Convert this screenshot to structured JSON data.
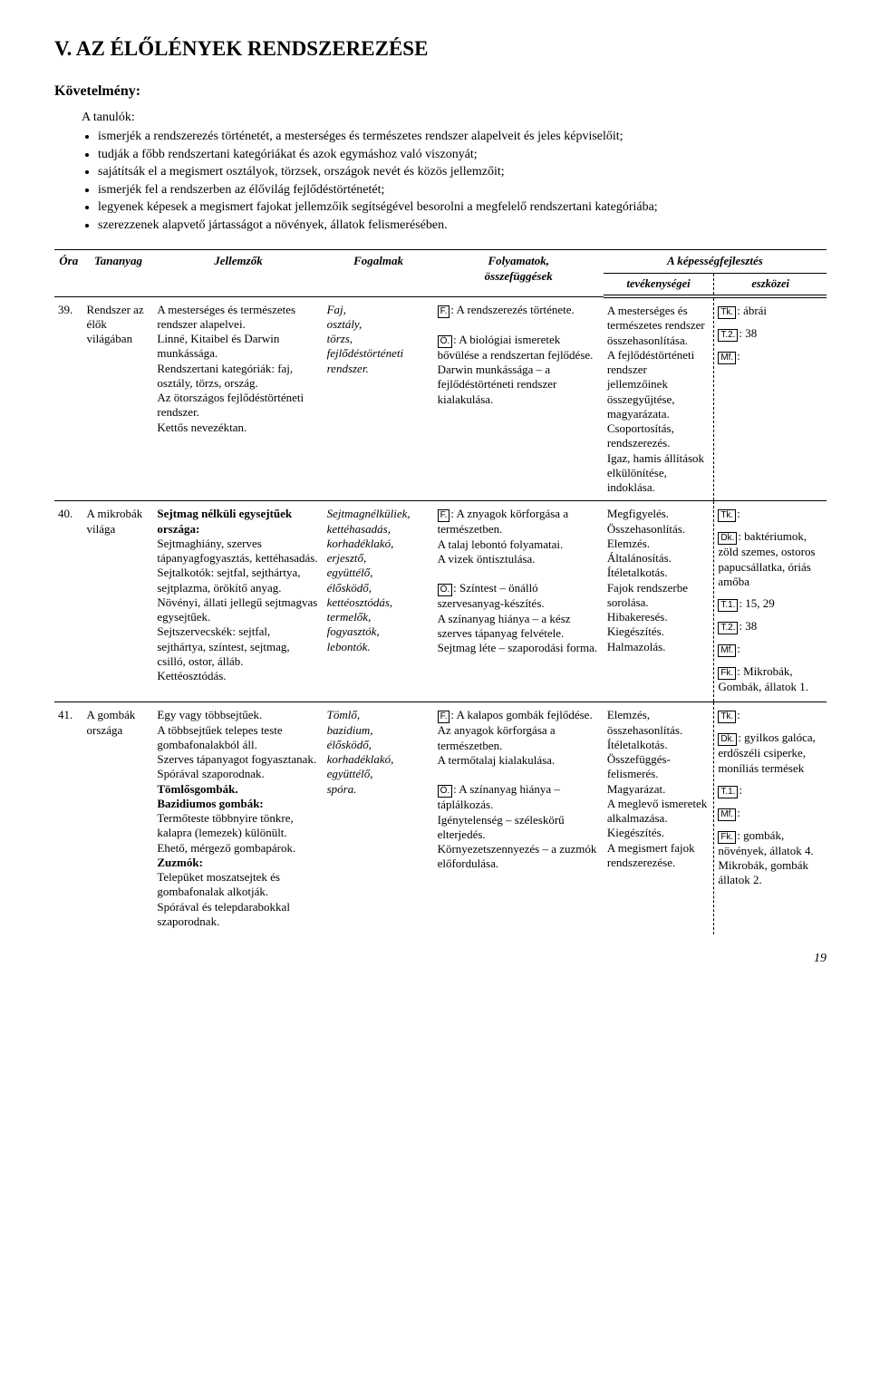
{
  "title": "V. AZ ÉLŐLÉNYEK RENDSZEREZÉSE",
  "reqHeading": "Követelmény:",
  "introLead": "A tanulók:",
  "introItems": [
    "ismerjék a rendszerezés történetét, a mesterséges és természetes rendszer alapelveit és jeles képviselőit;",
    "tudják a főbb rendszertani kategóriákat és azok egymáshoz való viszonyát;",
    "sajátítsák el a megismert osztályok, törzsek, országok nevét és közös jellemzőit;",
    "ismerjék fel a rendszerben az élővilág fejlődéstörténetét;",
    "legyenek képesek a megismert fajokat jellemzőik segítségével besorolni a megfelelő rendszertani kategóriába;",
    "szerezzenek alapvető jártasságot a növények, állatok felismerésében."
  ],
  "head": {
    "ora": "Óra",
    "tananyag": "Tananyag",
    "jellemzok": "Jellemzők",
    "fogalmak": "Fogalmak",
    "folyamatok": "Folyamatok,\nösszefüggések",
    "kepesseg": "A képességfejlesztés",
    "tev": "tevékenységei",
    "esz": "eszközei"
  },
  "tags": {
    "F": "F.",
    "O": "Ö.",
    "Tk": "Tk.",
    "T1": "T.1.",
    "T2": "T.2.",
    "Mf": "Mf.",
    "Dk": "Dk.",
    "Fk": "Fk."
  },
  "rows": [
    {
      "ora": "39.",
      "tan": "Rendszer az élők világában",
      "jel": "A mesterséges és természetes rendszer alapelvei.\nLinné, Kitaibel és Darwin munkássága.\nRendszertani kategóriák: faj, osztály, törzs, ország.\nAz ötországos fejlődéstörténeti rendszer.\nKettős nevezéktan.",
      "fog": "Faj,\nosztály,\ntörzs,\nfejlődéstörténeti rendszer.",
      "fol": {
        "F": ": A rendszerezés története.",
        "O": ": A biológiai ismeretek bővülése a rendszertan fejlődése.\nDarwin munkássága – a fejlődéstörténeti rendszer kialakulása."
      },
      "tev": "A mesterséges és természetes rendszer összehasonlítása.\nA fejlődéstörténeti rendszer jellemzőinek összegyűjtése, magyarázata.\nCsoportosítás, rendszerezés.\nIgaz, hamis állítások elkülönítése, indoklása.",
      "esz": [
        {
          "tag": "Tk",
          "text": ": ábrái"
        },
        {
          "tag": "T2",
          "text": ": 38"
        },
        {
          "tag": "Mf",
          "text": ":"
        }
      ]
    },
    {
      "ora": "40.",
      "tan": "A mikrobák világa",
      "jelHead": "Sejtmag nélküli egysejtűek országa:",
      "jel": "Sejtmaghiány, szerves tápanyagfogyasztás, kettéhasadás.\nSejtalkotók: sejtfal, sejthártya, sejtplazma, örökítő anyag.\nNövényi, állati jellegű sejtmagvas egysejtűek.\nSejtszervecskék: sejtfal, sejthártya, színtest, sejtmag, csilló, ostor, álláb.\nKettéosztódás.",
      "fog": "Sejtmagnélküliek,\nkettéhasadás,\nkorhadéklakó,\nerjesztő,\negyüttélő,\nélősködő,\nkettéosztódás,\ntermelők,\nfogyasztók,\nlebontók.",
      "fol": {
        "F": ": A znyagok körforgása a természetben.\nA talaj lebontó folyamatai.\nA vizek öntisztulása.",
        "O": ": Színtest – önálló szervesanyag-készítés.\nA színanyag hiánya – a kész szerves tápanyag felvétele.\nSejtmag léte – szaporodási forma."
      },
      "tev": "Megfigyelés.\nÖsszehasonlítás.\nElemzés.\nÁltalánosítás.\nÍtéletalkotás.\nFajok rendszerbe sorolása.\nHibakeresés.\nKiegészítés.\nHalmazolás.",
      "esz": [
        {
          "tag": "Tk",
          "text": ":"
        },
        {
          "tag": "Dk",
          "text": ": baktériumok, zöld szemes, ostoros papucsállatka, óriás amőba"
        },
        {
          "tag": "T1",
          "text": ": 15, 29"
        },
        {
          "tag": "T2",
          "text": ": 38"
        },
        {
          "tag": "Mf",
          "text": ":"
        },
        {
          "tag": "Fk",
          "text": ": Mikrobák, Gombák, állatok 1."
        }
      ]
    },
    {
      "ora": "41.",
      "tan": "A gombák országa",
      "jel": "Egy vagy többsejtűek.\nA többsejtűek telepes teste gombafonalakból áll.\nSzerves tápanyagot fogyasztanak.\nSpórával szaporodnak.",
      "jelBold1": "Tömlősgombák.",
      "jelBold2": "Bazidiumos gombák:",
      "jel2": "Termőteste többnyire tönkre, kalapra (lemezek) különült.\nEhető, mérgező gombapárok.",
      "jelBold3": "Zuzmók:",
      "jel3": "Telepüket moszatsejtek és gombafonalak alkotják.\nSpórával és telepdarabokkal szaporodnak.",
      "fog": "Tömlő,\nbazidium,\nélősködő,\nkorhadéklakó,\negyüttélő,\nspóra.",
      "fol": {
        "F": ": A kalapos gombák fejlődése.\nAz anyagok körforgása a természetben.\nA termőtalaj kialakulása.",
        "O": ": A színanyag hiánya – táplálkozás.\nIgénytelenség – széleskörű elterjedés.\nKörnyezetszennyezés – a zuzmók előfordulása."
      },
      "tev": "Elemzés, összehasonlítás.\nÍtéletalkotás.\nÖsszefüggés-felismerés.\nMagyarázat.\nA meglevő ismeretek alkalmazása.\nKiegészítés.\nA megismert fajok rendszerezése.",
      "esz": [
        {
          "tag": "Tk",
          "text": ":"
        },
        {
          "tag": "Dk",
          "text": ": gyilkos galóca, erdőszéli csiperke, moníliás termések"
        },
        {
          "tag": "T1",
          "text": ":"
        },
        {
          "tag": "Mf",
          "text": ":"
        },
        {
          "tag": "Fk",
          "text": ": gombák, növények, állatok 4.\nMikrobák, gombák állatok 2."
        }
      ]
    }
  ],
  "pagenum": "19"
}
